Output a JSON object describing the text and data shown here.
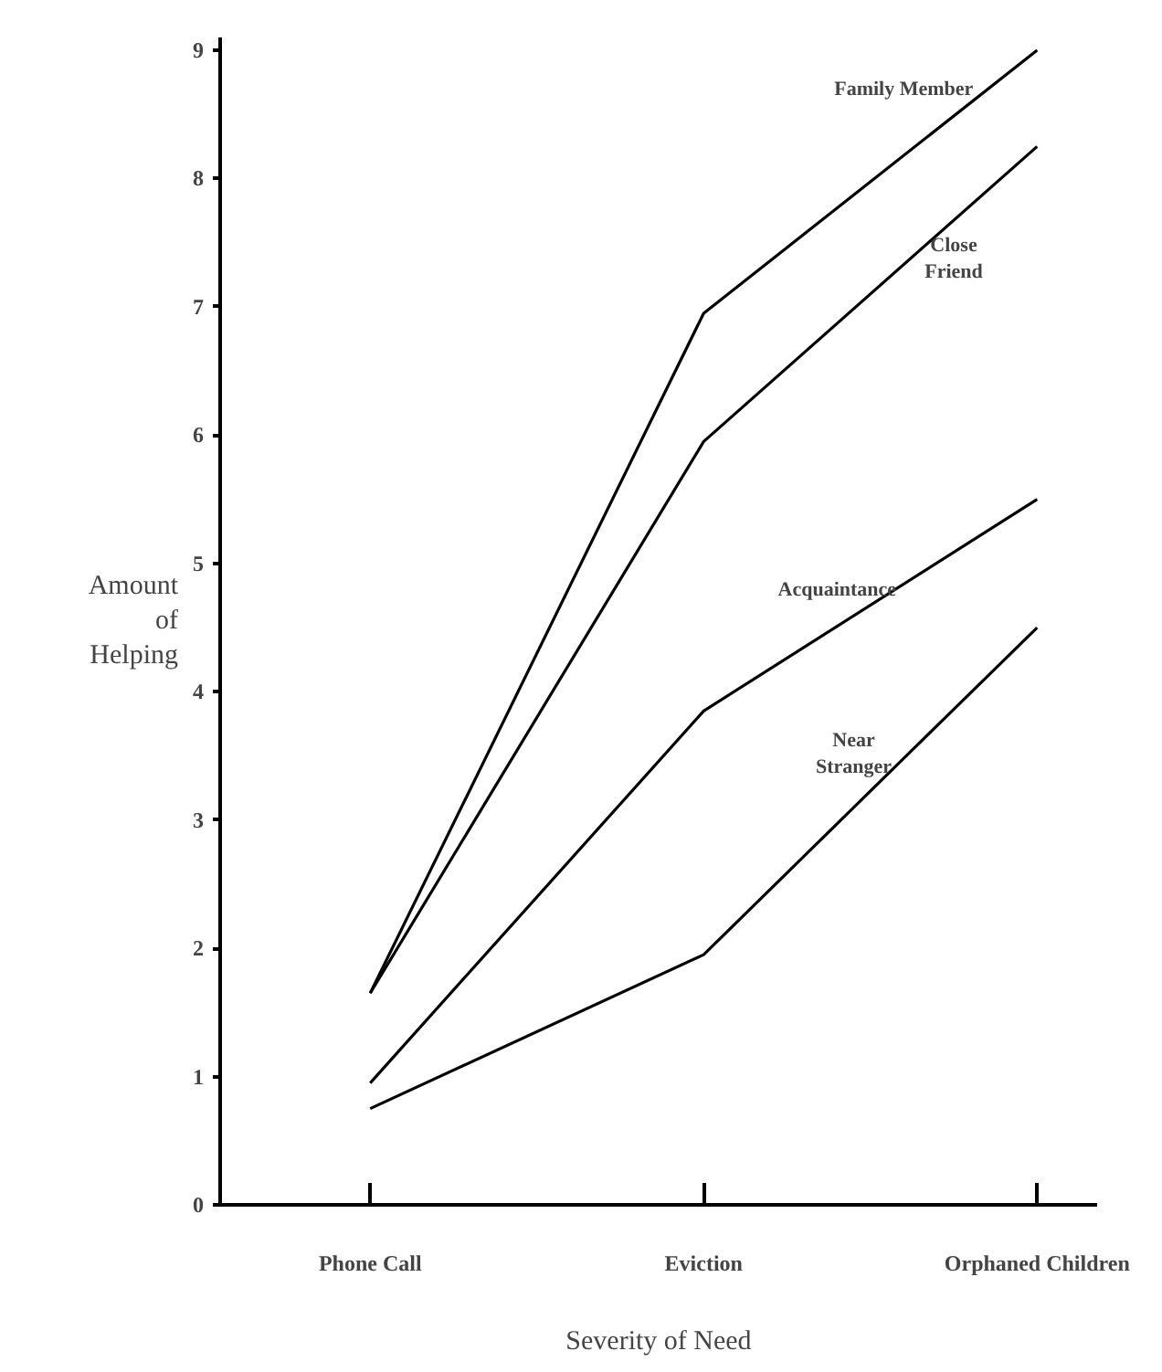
{
  "chart_data": {
    "type": "line",
    "xlabel": "Severity of Need",
    "ylabel": "Amount\nof\nHelping",
    "categories": [
      "Phone Call",
      "Eviction",
      "Orphaned Children"
    ],
    "series": [
      {
        "name": "Family Member",
        "color": "#000000",
        "values": [
          1.65,
          6.95,
          9.0
        ]
      },
      {
        "name": "Close\nFriend",
        "color": "#000000",
        "values": [
          1.65,
          5.95,
          8.25
        ]
      },
      {
        "name": "Acquaintance",
        "color": "#000000",
        "values": [
          0.95,
          3.85,
          5.5
        ]
      },
      {
        "name": "Near\nStranger",
        "color": "#000000",
        "values": [
          0.75,
          1.95,
          4.5
        ]
      }
    ],
    "ylim": [
      0,
      9.1
    ],
    "yticks": [
      0,
      1,
      2,
      3,
      4,
      5,
      6,
      7,
      8,
      9
    ],
    "grid": false,
    "legend": false,
    "marker": "none",
    "line_style": "solid"
  }
}
